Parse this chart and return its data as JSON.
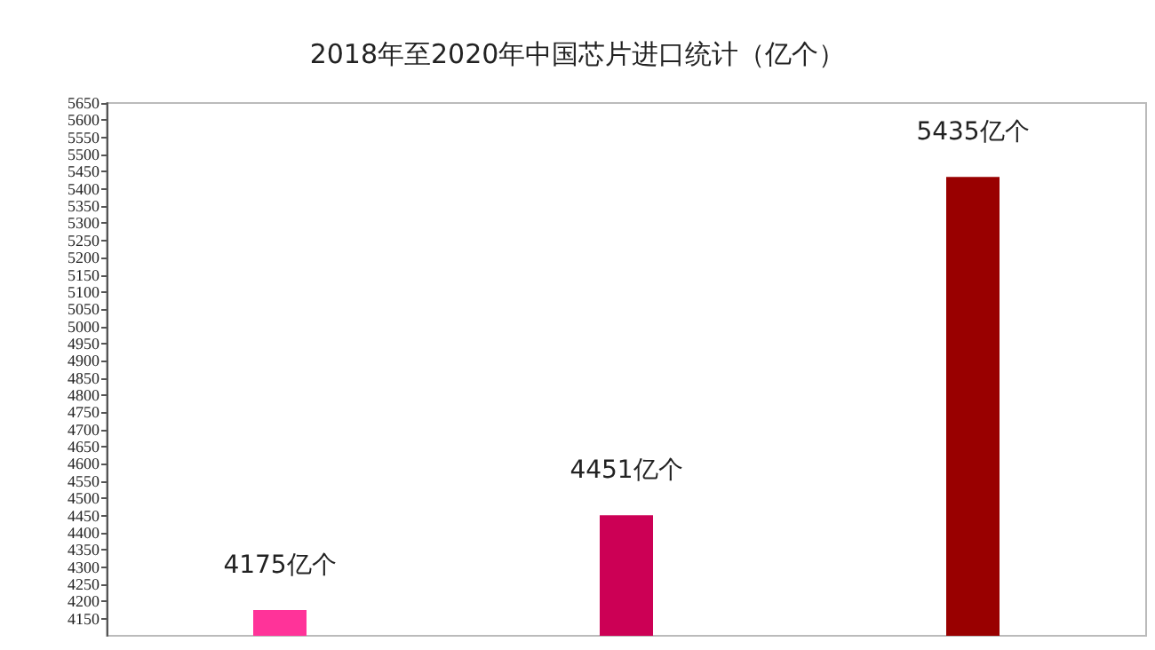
{
  "chart_data": {
    "type": "bar",
    "title": "2018年至2020年中国芯片进口统计（亿个）",
    "categories": [
      null,
      null,
      null
    ],
    "values": [
      4175,
      4451,
      5435
    ],
    "colors": [
      "#ff3399",
      "#cc0055",
      "#990000"
    ],
    "value_labels": [
      "4175亿个",
      "4451亿个",
      "5435亿个"
    ],
    "ylim": [
      4100,
      5650
    ],
    "yticks": [
      4150,
      4200,
      4250,
      4300,
      4350,
      4400,
      4450,
      4500,
      4550,
      4600,
      4650,
      4700,
      4750,
      4800,
      4850,
      4900,
      4950,
      5000,
      5050,
      5100,
      5150,
      5200,
      5250,
      5300,
      5350,
      5400,
      5450,
      5500,
      5550,
      5600,
      5650
    ],
    "grid": false
  }
}
